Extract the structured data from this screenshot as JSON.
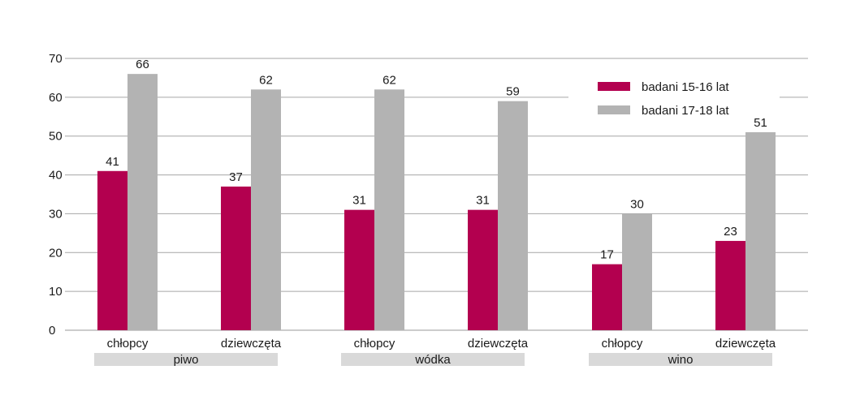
{
  "chart_data": {
    "type": "bar",
    "title": "",
    "xlabel": "",
    "ylabel": "",
    "ylim": [
      0,
      70
    ],
    "yticks": [
      0,
      10,
      20,
      30,
      40,
      50,
      60,
      70
    ],
    "grid": true,
    "legend_position": "top-right",
    "groups": [
      "piwo",
      "wódka",
      "wino"
    ],
    "categories": [
      "chłopcy",
      "dziewczęta",
      "chłopcy",
      "dziewczęta",
      "chłopcy",
      "dziewczęta"
    ],
    "category_group_index": [
      0,
      0,
      1,
      1,
      2,
      2
    ],
    "series": [
      {
        "name": "badani 15-16 lat",
        "color": "#b3004f",
        "values": [
          41,
          37,
          31,
          31,
          17,
          23
        ]
      },
      {
        "name": "badani 17-18 lat",
        "color": "#b3b3b3",
        "values": [
          66,
          62,
          62,
          59,
          30,
          51
        ]
      }
    ]
  }
}
